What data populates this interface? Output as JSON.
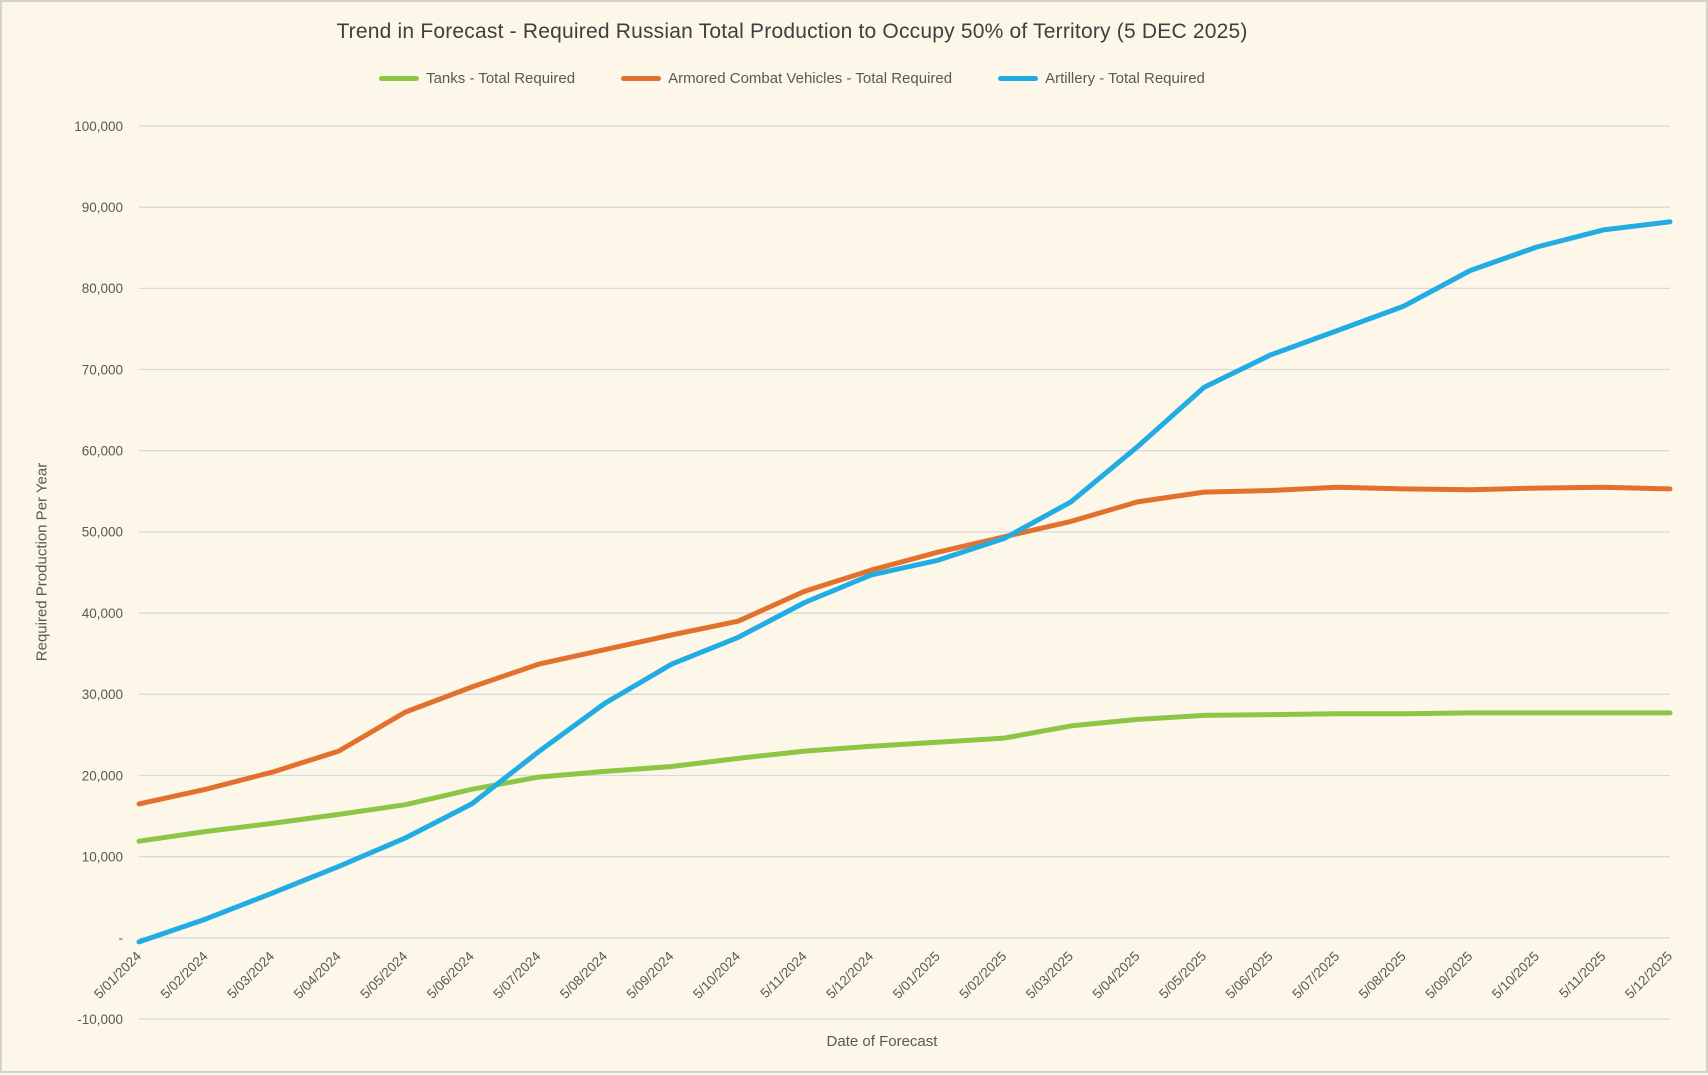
{
  "page": {
    "background": "#FCF7E8",
    "border_color": "#D5D2C8"
  },
  "chart_data": {
    "type": "line",
    "title": "Trend in Forecast - Required Russian Total Production to Occupy 50% of Territory (5 DEC 2025)",
    "xlabel": "Date of Forecast",
    "ylabel": "Required Production Per Year",
    "ylim": [
      -10000,
      100000
    ],
    "y_tick_step": 10000,
    "zero_tick_label": "-",
    "grid": true,
    "legend_position": "top",
    "gridline_color": "#D9D9D9",
    "text_color": "#595959",
    "title_color": "#3F3F3F",
    "categories": [
      "5/01/2024",
      "5/02/2024",
      "5/03/2024",
      "5/04/2024",
      "5/05/2024",
      "5/06/2024",
      "5/07/2024",
      "5/08/2024",
      "5/09/2024",
      "5/10/2024",
      "5/11/2024",
      "5/12/2024",
      "5/01/2025",
      "5/02/2025",
      "5/03/2025",
      "5/04/2025",
      "5/05/2025",
      "5/06/2025",
      "5/07/2025",
      "5/08/2025",
      "5/09/2025",
      "5/10/2025",
      "5/11/2025",
      "5/12/2025"
    ],
    "series": [
      {
        "name": "Tanks - Total Required",
        "color": "#8CC644",
        "values": [
          11900,
          13100,
          14100,
          15200,
          16400,
          18300,
          19800,
          20500,
          21100,
          22100,
          23000,
          23600,
          24100,
          24600,
          26100,
          26900,
          27400,
          27500,
          27600,
          27600,
          27700,
          27700,
          27700,
          27700
        ]
      },
      {
        "name": "Armored Combat Vehicles - Total Required",
        "color": "#E2712D",
        "values": [
          16500,
          18300,
          20400,
          23000,
          27800,
          30900,
          33700,
          35500,
          37300,
          39000,
          42700,
          45300,
          47500,
          49400,
          51300,
          53700,
          54900,
          55100,
          55500,
          55300,
          55200,
          55400,
          55500,
          55300
        ]
      },
      {
        "name": "Artillery - Total Required",
        "color": "#21ACE3",
        "values": [
          -500,
          2300,
          5500,
          8800,
          12300,
          16500,
          22900,
          28900,
          33700,
          37000,
          41300,
          44700,
          46500,
          49200,
          53700,
          60500,
          67800,
          71800,
          74800,
          77800,
          82200,
          85100,
          87200,
          88200
        ]
      }
    ]
  }
}
